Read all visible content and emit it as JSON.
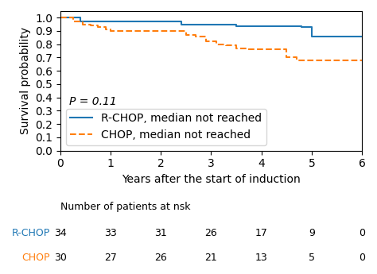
{
  "chart_data": {
    "type": "step",
    "xlabel": "Years after the start of induction",
    "ylabel": "Survival probability",
    "xlim": [
      0,
      6
    ],
    "ylim": [
      0.0,
      1.05
    ],
    "xticks": [
      0,
      1,
      2,
      3,
      4,
      5,
      6
    ],
    "yticks": [
      0.0,
      0.1,
      0.2,
      0.3,
      0.4,
      0.5,
      0.6,
      0.7,
      0.8,
      0.9,
      1.0
    ],
    "legend": "lower left",
    "annotation": "P = 0.11",
    "series": [
      {
        "name": "R-CHOP, median not reached",
        "line_style": "solid",
        "x": [
          0,
          0.4,
          0.4,
          0.9,
          0.9,
          1.0,
          1.0,
          1.3,
          1.3,
          2.4,
          2.4,
          2.6,
          2.6,
          2.8,
          2.8,
          3.0,
          3.0,
          3.5,
          3.5,
          4.0,
          4.0,
          4.6,
          4.6,
          4.8,
          4.8,
          5.0,
          5.0,
          5.3,
          5.3,
          6.0
        ],
        "values": [
          1.0,
          1.0,
          0.97,
          0.97,
          0.97,
          0.97,
          0.97,
          0.97,
          0.97,
          0.97,
          0.95,
          0.95,
          0.95,
          0.95,
          0.95,
          0.95,
          0.95,
          0.95,
          0.935,
          0.935,
          0.935,
          0.935,
          0.935,
          0.935,
          0.93,
          0.93,
          0.855,
          0.855,
          0.855,
          0.855
        ]
      },
      {
        "name": "CHOP, median not reached",
        "line_style": "dashed",
        "x": [
          0,
          0.25,
          0.25,
          0.45,
          0.45,
          0.6,
          0.6,
          0.75,
          0.75,
          0.9,
          0.9,
          1.0,
          1.0,
          1.1,
          1.1,
          1.3,
          1.3,
          1.7,
          1.7,
          2.0,
          2.0,
          2.5,
          2.5,
          2.7,
          2.7,
          2.9,
          2.9,
          3.1,
          3.1,
          3.3,
          3.3,
          3.5,
          3.5,
          3.7,
          3.7,
          3.9,
          3.9,
          4.1,
          4.1,
          4.5,
          4.5,
          4.7,
          4.7,
          4.9,
          4.9,
          5.2,
          5.2,
          6.0
        ],
        "values": [
          1.0,
          1.0,
          0.97,
          0.97,
          0.95,
          0.95,
          0.94,
          0.94,
          0.93,
          0.93,
          0.91,
          0.91,
          0.9,
          0.9,
          0.9,
          0.9,
          0.9,
          0.9,
          0.9,
          0.9,
          0.9,
          0.9,
          0.87,
          0.87,
          0.86,
          0.86,
          0.82,
          0.82,
          0.8,
          0.8,
          0.79,
          0.79,
          0.77,
          0.77,
          0.76,
          0.76,
          0.76,
          0.76,
          0.76,
          0.76,
          0.7,
          0.7,
          0.68,
          0.68,
          0.68,
          0.68,
          0.68,
          0.68
        ]
      }
    ],
    "at_risk": {
      "title": "Number of patients at nsk",
      "times": [
        0,
        1,
        2,
        3,
        4,
        5,
        6
      ],
      "rows": [
        {
          "label": "R-CHOP",
          "values": [
            34,
            33,
            31,
            26,
            17,
            9,
            0
          ]
        },
        {
          "label": "CHOP",
          "values": [
            30,
            27,
            26,
            21,
            13,
            5,
            0
          ]
        }
      ]
    }
  }
}
